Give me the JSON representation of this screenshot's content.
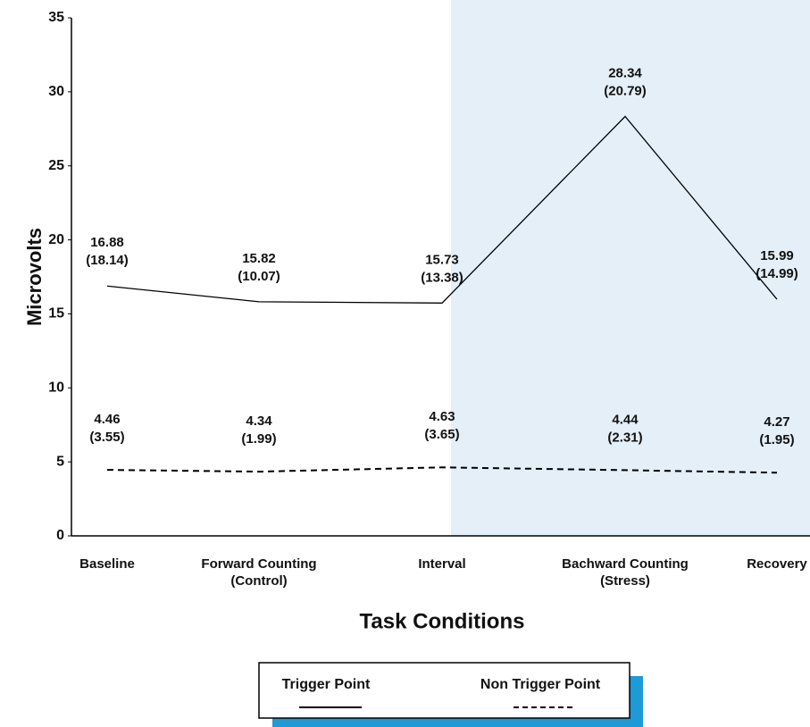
{
  "chart_data": {
    "type": "line",
    "x_label": "Task Conditions",
    "y_label": "Microvolts",
    "categories": [
      "Baseline",
      "Forward Counting (Control)",
      "Interval",
      "Bachward Counting (Stress)",
      "Recovery"
    ],
    "series": [
      {
        "name": "Trigger Point",
        "color": "#000000",
        "style": "solid",
        "values": [
          16.88,
          15.82,
          15.73,
          28.34,
          15.99
        ],
        "sd_labels": [
          "(18.14)",
          "(10.07)",
          "(13.38)",
          "(20.79)",
          "(14.99)"
        ]
      },
      {
        "name": "Non Trigger Point",
        "color": "#000000",
        "style": "dashed",
        "values": [
          4.46,
          4.34,
          4.63,
          4.44,
          4.27
        ],
        "sd_labels": [
          "(3.55)",
          "(1.99)",
          "(3.65)",
          "(2.31)",
          "(1.95)"
        ]
      }
    ],
    "ylim": [
      0,
      35
    ],
    "yticks": [
      0,
      5,
      10,
      15,
      20,
      25,
      30,
      35
    ]
  }
}
